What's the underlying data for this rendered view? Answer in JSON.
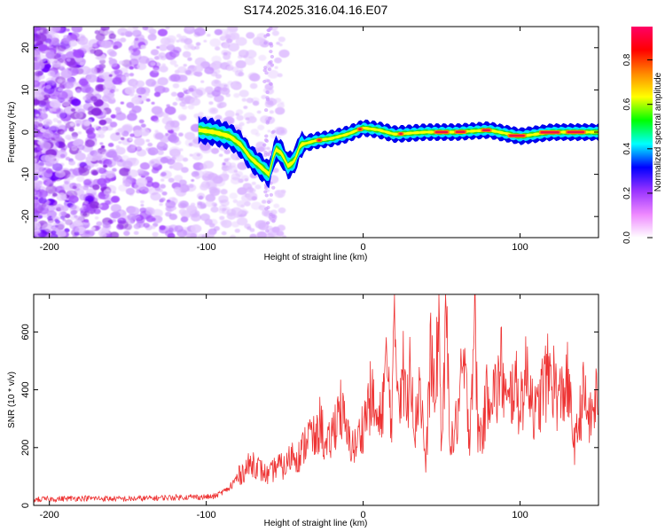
{
  "title": "S174.2025.316.04.16.E07",
  "chart_data": [
    {
      "type": "heatmap",
      "name": "spectrogram",
      "xlabel": "Height of straight line (km)",
      "ylabel": "Frequency (Hz)",
      "xlim": [
        -210,
        150
      ],
      "ylim": [
        -25,
        25
      ],
      "xticks": [
        -200,
        -100,
        0,
        100
      ],
      "yticks": [
        -20,
        -10,
        0,
        10,
        20
      ],
      "ridge": [
        {
          "x": -105,
          "y": 0.5
        },
        {
          "x": -95,
          "y": 0.0
        },
        {
          "x": -85,
          "y": -1.0
        },
        {
          "x": -78,
          "y": -3.0
        },
        {
          "x": -72,
          "y": -6.0
        },
        {
          "x": -66,
          "y": -8.0
        },
        {
          "x": -60,
          "y": -10.0
        },
        {
          "x": -56,
          "y": -4.0
        },
        {
          "x": -52,
          "y": -5.0
        },
        {
          "x": -48,
          "y": -8.0
        },
        {
          "x": -44,
          "y": -7.0
        },
        {
          "x": -40,
          "y": -3.0
        },
        {
          "x": -30,
          "y": -2.0
        },
        {
          "x": -20,
          "y": -1.5
        },
        {
          "x": -10,
          "y": -0.5
        },
        {
          "x": 0,
          "y": 1.0
        },
        {
          "x": 10,
          "y": 0.5
        },
        {
          "x": 20,
          "y": -0.5
        },
        {
          "x": 40,
          "y": 0.0
        },
        {
          "x": 60,
          "y": 0.0
        },
        {
          "x": 80,
          "y": 0.5
        },
        {
          "x": 100,
          "y": -1.0
        },
        {
          "x": 120,
          "y": 0.0
        },
        {
          "x": 150,
          "y": 0.0
        }
      ],
      "colorbar": {
        "label": "Normalized spectral amplitude",
        "range": [
          0.0,
          0.95
        ],
        "ticks": [
          "0.0",
          "0.2",
          "0.4",
          "0.6",
          "0.8"
        ],
        "tick_values": [
          0.0,
          0.2,
          0.4,
          0.6,
          0.8
        ],
        "colors": [
          "#ffffff",
          "#ee88ff",
          "#9933ff",
          "#0000ff",
          "#00ffff",
          "#00ff00",
          "#ffff00",
          "#ff8800",
          "#ff0000",
          "#ff0066"
        ]
      }
    },
    {
      "type": "line",
      "name": "snr",
      "xlabel": "Height of straight line (km)",
      "ylabel": "SNR (10 * v/v)",
      "xlim": [
        -210,
        150
      ],
      "ylim": [
        0,
        730
      ],
      "xticks": [
        -200,
        -100,
        0,
        100
      ],
      "yticks": [
        0,
        200,
        400,
        600
      ],
      "color": "#ee3333",
      "x": [
        -210,
        -180,
        -150,
        -120,
        -95,
        -85,
        -78,
        -70,
        -65,
        -60,
        -55,
        -50,
        -45,
        -40,
        -35,
        -30,
        -27,
        -24,
        -20,
        -15,
        -10,
        -5,
        0,
        5,
        10,
        15,
        18,
        20,
        23,
        25,
        28,
        30,
        33,
        36,
        40,
        43,
        46,
        48,
        50,
        53,
        56,
        60,
        64,
        68,
        71,
        73,
        76,
        80,
        85,
        88,
        92,
        96,
        100,
        105,
        110,
        115,
        120,
        125,
        130,
        135,
        140,
        145,
        150
      ],
      "values": [
        20,
        25,
        22,
        28,
        30,
        60,
        110,
        150,
        120,
        100,
        140,
        130,
        180,
        170,
        250,
        220,
        300,
        180,
        240,
        350,
        230,
        200,
        280,
        380,
        260,
        480,
        300,
        590,
        380,
        500,
        300,
        580,
        250,
        450,
        120,
        550,
        310,
        700,
        200,
        620,
        200,
        300,
        480,
        250,
        700,
        260,
        250,
        420,
        380,
        480,
        320,
        430,
        350,
        470,
        300,
        420,
        460,
        360,
        430,
        200,
        380,
        290,
        410
      ]
    }
  ]
}
